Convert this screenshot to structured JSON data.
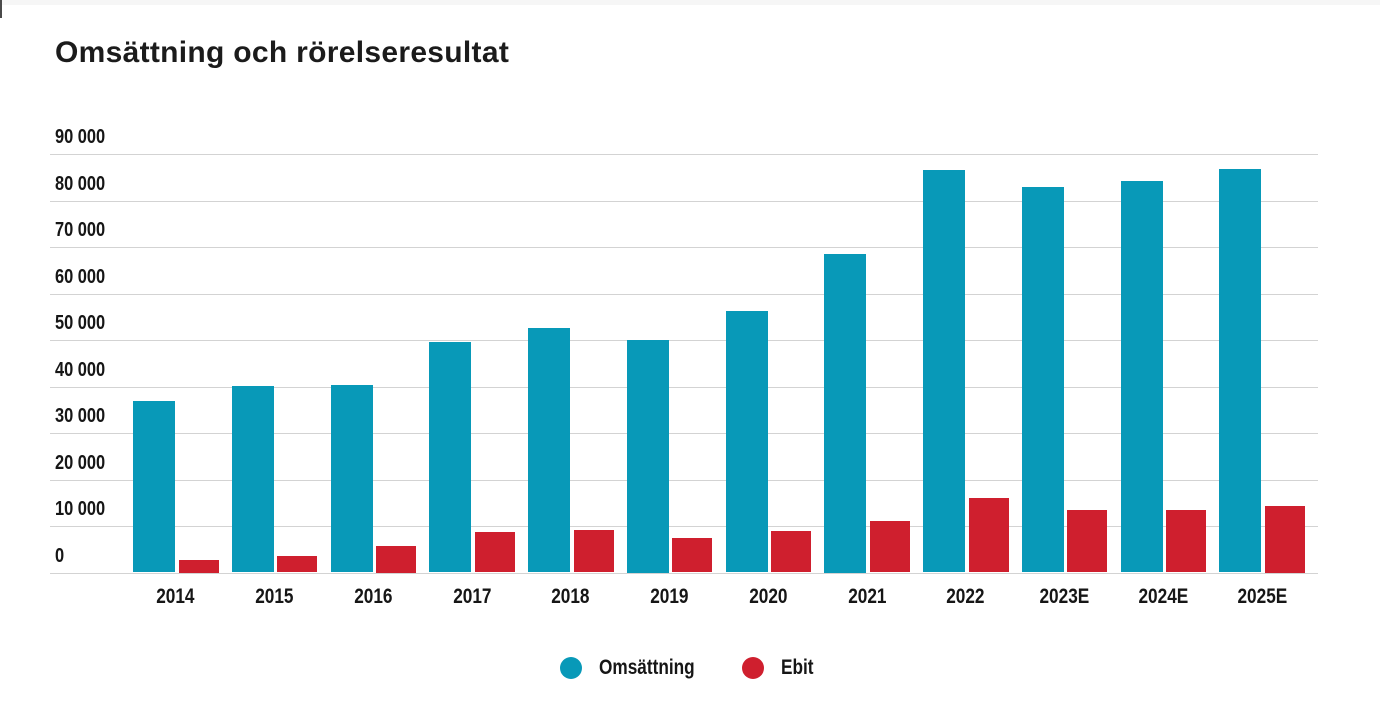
{
  "page": {
    "title": "Omsättning och rörelseresultat"
  },
  "colors": {
    "revenue_blue": "#0899b8",
    "ebit_red": "#cf1f2e",
    "gridline_gray": "#d3d3d3",
    "text_dark": "#1b1b1b",
    "background": "#ffffff"
  },
  "chart_data": {
    "type": "bar",
    "title": "Omsättning och rörelseresultat",
    "categories": [
      "2014",
      "2015",
      "2016",
      "2017",
      "2018",
      "2019",
      "2020",
      "2021",
      "2022",
      "2023E",
      "2024E",
      "2025E"
    ],
    "series": [
      {
        "name": "Omsättning",
        "color": "#0899b8",
        "values": [
          36900,
          40200,
          40300,
          49500,
          52500,
          50000,
          56300,
          68500,
          86500,
          83000,
          84100,
          86700
        ]
      },
      {
        "name": "Ebit",
        "color": "#cf1f2e",
        "values": [
          2800,
          3600,
          5800,
          8800,
          9100,
          7500,
          8900,
          11100,
          16000,
          13400,
          13500,
          14300
        ]
      }
    ],
    "xlabel": "",
    "ylabel": "",
    "ylim": [
      0,
      90000
    ],
    "ytick_step": 10000,
    "ytick_values": [
      0,
      10000,
      20000,
      30000,
      40000,
      50000,
      60000,
      70000,
      80000,
      90000
    ],
    "ytick_labels": [
      "0",
      "10 000",
      "20 000",
      "30 000",
      "40 000",
      "50 000",
      "60 000",
      "70 000",
      "80 000",
      "90 000"
    ],
    "grid": "horizontal",
    "legend_position": "bottom-center"
  }
}
